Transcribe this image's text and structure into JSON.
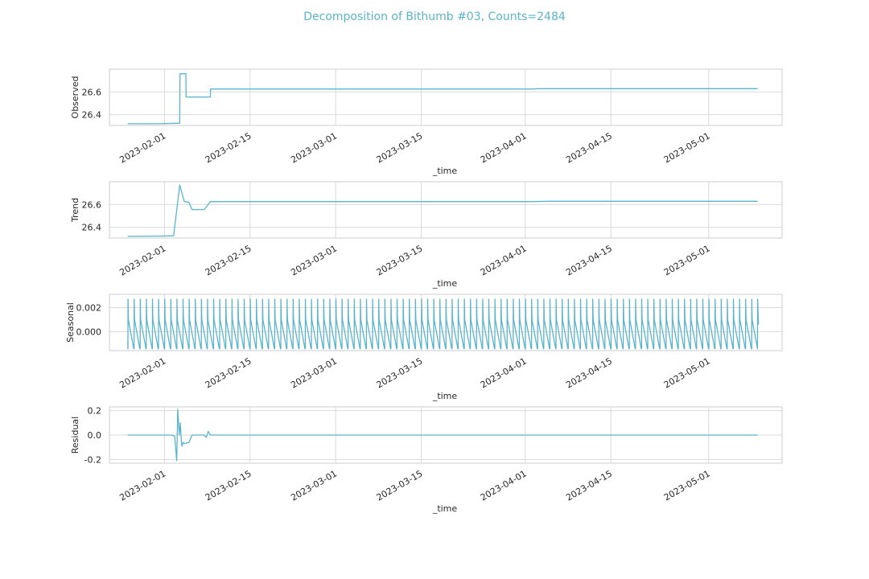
{
  "figure_title": "Decomposition of Bithumb #03, Counts=2484",
  "line_color": "#5ab4cc",
  "chart_data": [
    {
      "type": "line",
      "ylabel": "Observed",
      "xlabel": "_time",
      "x_ticks": [
        "2023-02-01",
        "2023-02-15",
        "2023-03-01",
        "2023-03-15",
        "2023-04-01",
        "2023-04-15",
        "2023-05-01"
      ],
      "xlim": [
        "2023-01-23",
        "2023-05-13"
      ],
      "y_ticks": [
        "26.4",
        "26.6"
      ],
      "ylim": [
        26.305,
        26.8
      ],
      "grid": true,
      "series": [
        {
          "x": [
            "2023-01-26",
            "2023-01-31",
            "2023-02-03 12:00",
            "2023-02-03 13:00",
            "2023-02-04 12:00",
            "2023-02-04 13:00",
            "2023-02-08 12:00",
            "2023-02-08 13:00",
            "2023-04-02",
            "2023-04-03",
            "2023-05-09"
          ],
          "values": [
            26.32,
            26.32,
            26.325,
            26.76,
            26.76,
            26.555,
            26.555,
            26.625,
            26.625,
            26.628,
            26.628
          ]
        }
      ]
    },
    {
      "type": "line",
      "ylabel": "Trend",
      "xlabel": "_time",
      "x_ticks": [
        "2023-02-01",
        "2023-02-15",
        "2023-03-01",
        "2023-03-15",
        "2023-04-01",
        "2023-04-15",
        "2023-05-01"
      ],
      "xlim": [
        "2023-01-23",
        "2023-05-13"
      ],
      "y_ticks": [
        "26.4",
        "26.6"
      ],
      "ylim": [
        26.305,
        26.8
      ],
      "grid": true,
      "series": [
        {
          "x": [
            "2023-01-26",
            "2023-01-31",
            "2023-02-02 12:00",
            "2023-02-03 12:00",
            "2023-02-04 06:00",
            "2023-02-05",
            "2023-02-05 12:00",
            "2023-02-07 12:00",
            "2023-02-08 12:00",
            "2023-04-02",
            "2023-04-05",
            "2023-05-09"
          ],
          "values": [
            26.32,
            26.322,
            26.325,
            26.77,
            26.625,
            26.62,
            26.555,
            26.555,
            26.625,
            26.625,
            26.628,
            26.628
          ]
        }
      ]
    },
    {
      "type": "line",
      "ylabel": "Seasonal",
      "xlabel": "_time",
      "x_ticks": [
        "2023-02-01",
        "2023-02-15",
        "2023-03-01",
        "2023-03-15",
        "2023-04-01",
        "2023-04-15",
        "2023-05-01"
      ],
      "xlim": [
        "2023-01-23",
        "2023-05-13"
      ],
      "y_ticks": [
        "0.000",
        "0.002"
      ],
      "ylim": [
        -0.00155,
        0.0031
      ],
      "grid": true,
      "pattern": {
        "kind": "daily_sawtooth",
        "start": "2023-01-26",
        "end": "2023-05-09",
        "peak": 0.0027,
        "high": 0.001,
        "trough": -0.0014
      }
    },
    {
      "type": "line",
      "ylabel": "Residual",
      "xlabel": "_time",
      "x_ticks": [
        "2023-02-01",
        "2023-02-15",
        "2023-03-01",
        "2023-03-15",
        "2023-04-01",
        "2023-04-15",
        "2023-05-01"
      ],
      "xlim": [
        "2023-01-23",
        "2023-05-13"
      ],
      "y_ticks": [
        "0.2",
        "0.0",
        "-0.2"
      ],
      "ylim": [
        -0.23,
        0.23
      ],
      "grid": true,
      "series": [
        {
          "x": [
            "2023-01-26",
            "2023-02-02 06:00",
            "2023-02-02 16:00",
            "2023-02-03",
            "2023-02-03 04:00",
            "2023-02-03 10:00",
            "2023-02-03 14:00",
            "2023-02-03 20:00",
            "2023-02-04 02:00",
            "2023-02-04 06:00",
            "2023-02-05",
            "2023-02-05 12:00",
            "2023-02-07 12:00",
            "2023-02-07 20:00",
            "2023-02-08 04:00",
            "2023-02-08 12:00",
            "2023-05-09"
          ],
          "values": [
            0,
            0,
            -0.01,
            -0.21,
            0.21,
            0.0,
            0.1,
            -0.09,
            -0.06,
            -0.07,
            -0.06,
            0.0,
            0.0,
            -0.02,
            0.03,
            0.0,
            0.0
          ]
        }
      ]
    }
  ]
}
